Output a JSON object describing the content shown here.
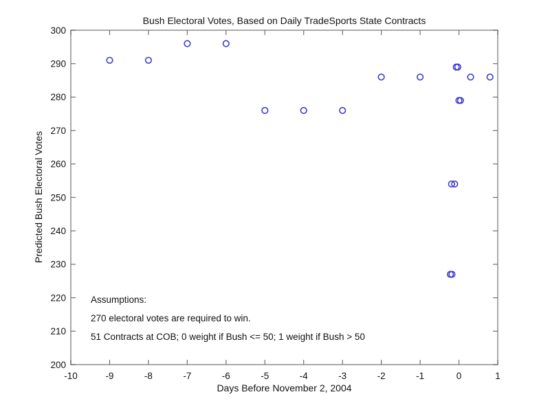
{
  "chart_data": {
    "type": "scatter",
    "title": "Bush Electoral Votes, Based on Daily TradeSports State Contracts",
    "xlabel": "Days Before November 2, 2004",
    "ylabel": "Predicted Bush Electoral Votes",
    "xlim": [
      -10,
      1
    ],
    "ylim": [
      200,
      300
    ],
    "xticks": [
      -10,
      -9,
      -8,
      -7,
      -6,
      -5,
      -4,
      -3,
      -2,
      -1,
      0,
      1
    ],
    "yticks": [
      200,
      210,
      220,
      230,
      240,
      250,
      260,
      270,
      280,
      290,
      300
    ],
    "grid": false,
    "legend": null,
    "marker": "circle-open",
    "marker_color": "#3d3dd1",
    "axis_color": "#a0a0a0",
    "tick_color": "#6e6e6e",
    "points": [
      {
        "x": -9,
        "y": 291
      },
      {
        "x": -8,
        "y": 291
      },
      {
        "x": -7,
        "y": 296
      },
      {
        "x": -6,
        "y": 296
      },
      {
        "x": -5,
        "y": 276
      },
      {
        "x": -4,
        "y": 276
      },
      {
        "x": -3,
        "y": 276
      },
      {
        "x": -2,
        "y": 286
      },
      {
        "x": -1,
        "y": 286
      },
      {
        "x": -0.07,
        "y": 289
      },
      {
        "x": -0.03,
        "y": 289
      },
      {
        "x": 0.0,
        "y": 279
      },
      {
        "x": 0.04,
        "y": 279
      },
      {
        "x": -0.19,
        "y": 254
      },
      {
        "x": -0.11,
        "y": 254
      },
      {
        "x": -0.22,
        "y": 227
      },
      {
        "x": -0.18,
        "y": 227
      },
      {
        "x": 0.3,
        "y": 286
      },
      {
        "x": 0.8,
        "y": 286
      }
    ],
    "annotations": [
      "Assumptions:",
      "270 electoral votes are required to win.",
      "51 Contracts at COB; 0 weight if Bush <= 50; 1 weight if Bush > 50"
    ]
  }
}
